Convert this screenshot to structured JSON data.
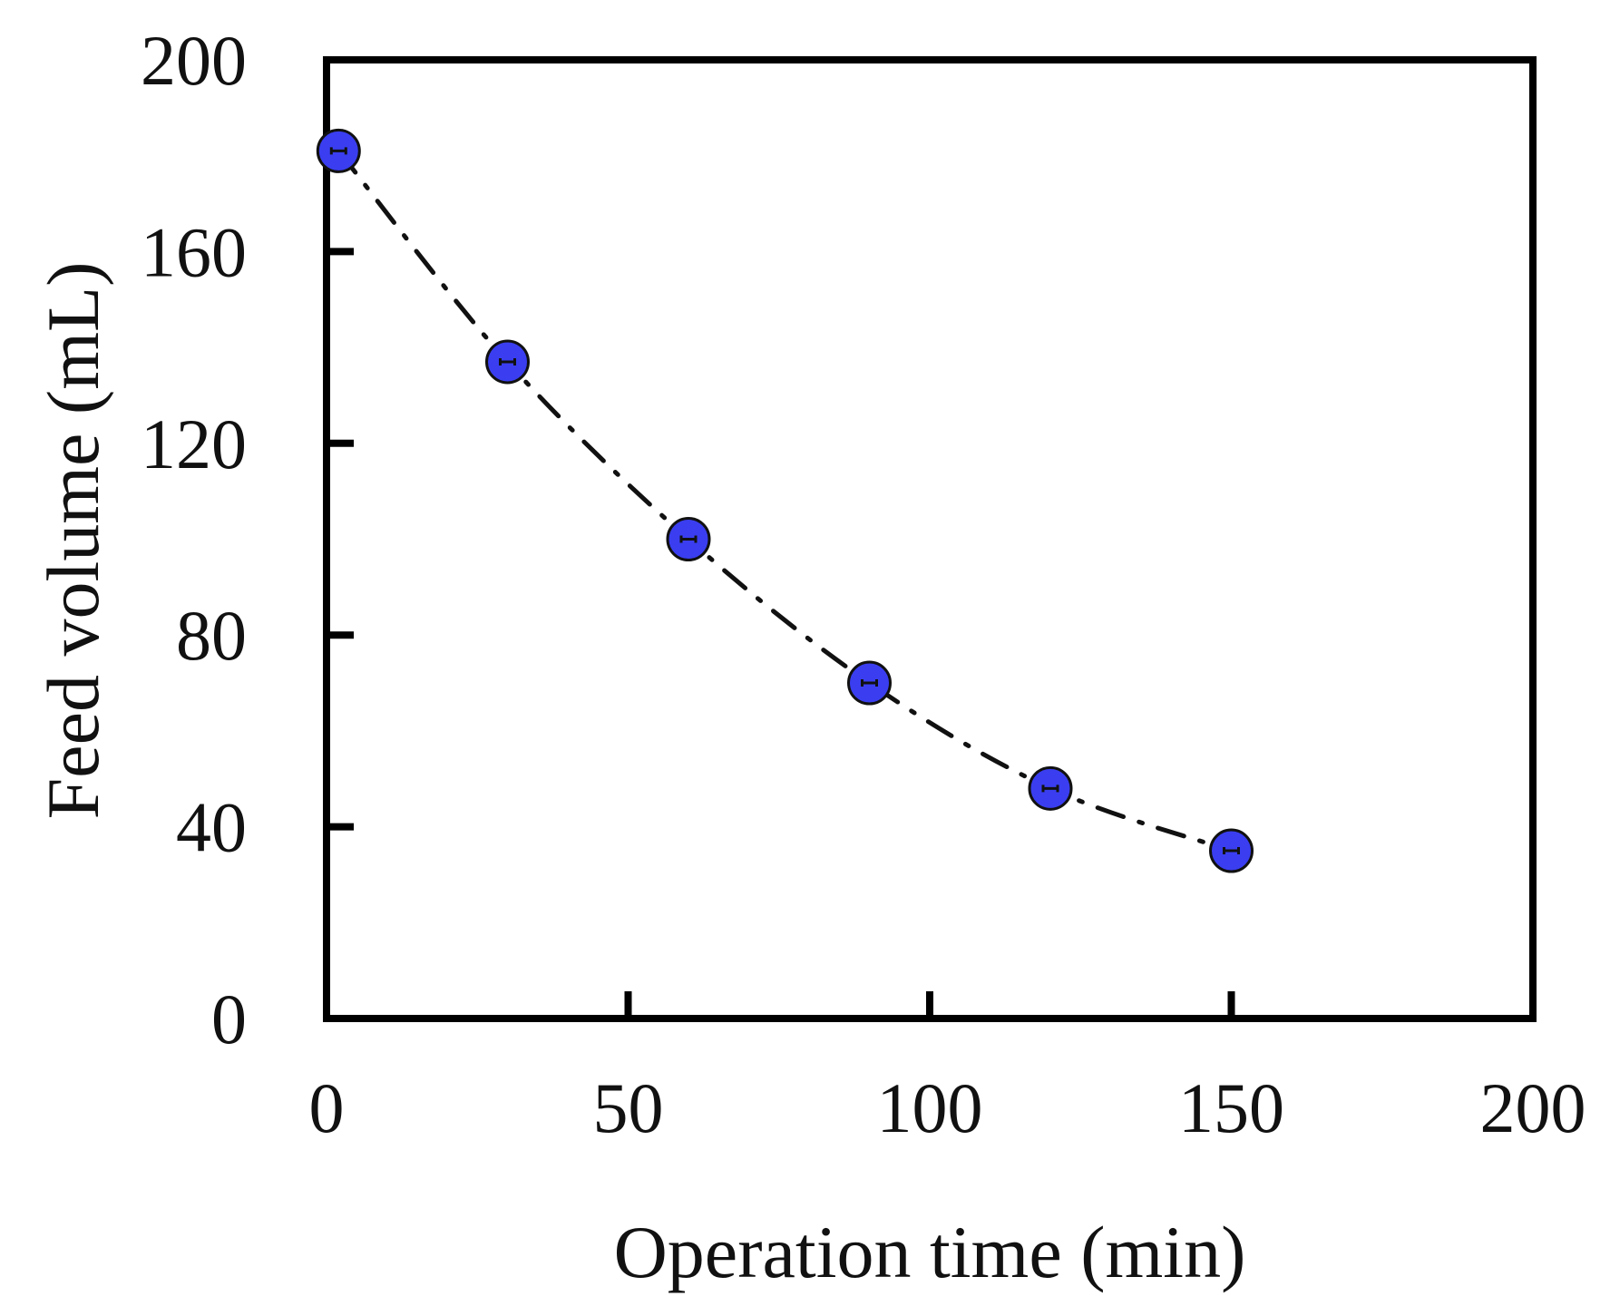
{
  "chart_data": {
    "type": "scatter",
    "title": "",
    "xlabel": "Operation time (min)",
    "ylabel": "Feed volume (mL)",
    "xlim": [
      0,
      200
    ],
    "ylim": [
      0,
      200
    ],
    "xticks": [
      0,
      50,
      100,
      150,
      200
    ],
    "yticks": [
      0,
      40,
      80,
      120,
      160,
      200
    ],
    "xtick_labels": [
      "0",
      "50",
      "100",
      "150",
      "200"
    ],
    "ytick_labels": [
      "0",
      "40",
      "80",
      "120",
      "160",
      "200"
    ],
    "grid": false,
    "legend": "none",
    "series": [
      {
        "x": [
          2,
          30,
          60,
          90,
          120,
          150
        ],
        "y": [
          181,
          137,
          100,
          70,
          48,
          35
        ],
        "marker": "circle",
        "marker_color": "#3a3ef0",
        "error_bars": true,
        "fit_line": {
          "style": "dash-dot",
          "color": "#111111"
        }
      }
    ]
  }
}
